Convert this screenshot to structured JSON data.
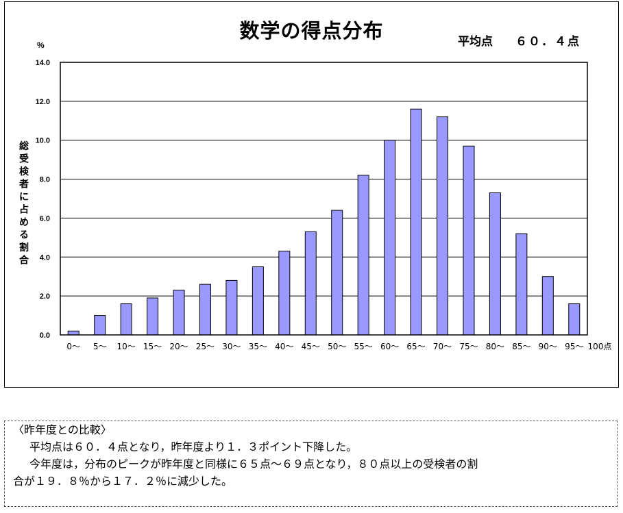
{
  "chart": {
    "title": "数学の得点分布",
    "average_label": "平均点",
    "average_value": "６０．４点"
  },
  "chart_data": {
    "type": "bar",
    "title": "数学の得点分布",
    "ylabel": "総受検者に占める割合",
    "y_unit": "%",
    "xlabel": "",
    "ylim": [
      0,
      14
    ],
    "yticks": [
      "0.0",
      "2.0",
      "4.0",
      "6.0",
      "8.0",
      "10.0",
      "12.0",
      "14.0"
    ],
    "grid": true,
    "categories": [
      "0～",
      "5～",
      "10～",
      "15～",
      "20～",
      "25～",
      "30～",
      "35～",
      "40～",
      "45～",
      "50～",
      "55～",
      "60～",
      "65～",
      "70～",
      "75～",
      "80～",
      "85～",
      "90～",
      "95～"
    ],
    "x_end_label": "100点",
    "values": [
      0.2,
      1.0,
      1.6,
      1.9,
      2.3,
      2.6,
      2.8,
      3.5,
      4.3,
      5.3,
      6.4,
      8.2,
      10.0,
      11.6,
      11.2,
      9.7,
      7.3,
      5.2,
      3.0,
      1.6
    ],
    "bar_color": "#9999ff"
  },
  "comparison": {
    "heading": "〈昨年度との比較〉",
    "line1": "平均点は６０．４点となり，昨年度より１．３ポイント下降した。",
    "line2": "今年度は，分布のピークが昨年度と同様に６５点～６９点となり，８０点以上の受検者の割",
    "line3": "合が１９．８％から１７．２％に減少した。"
  }
}
